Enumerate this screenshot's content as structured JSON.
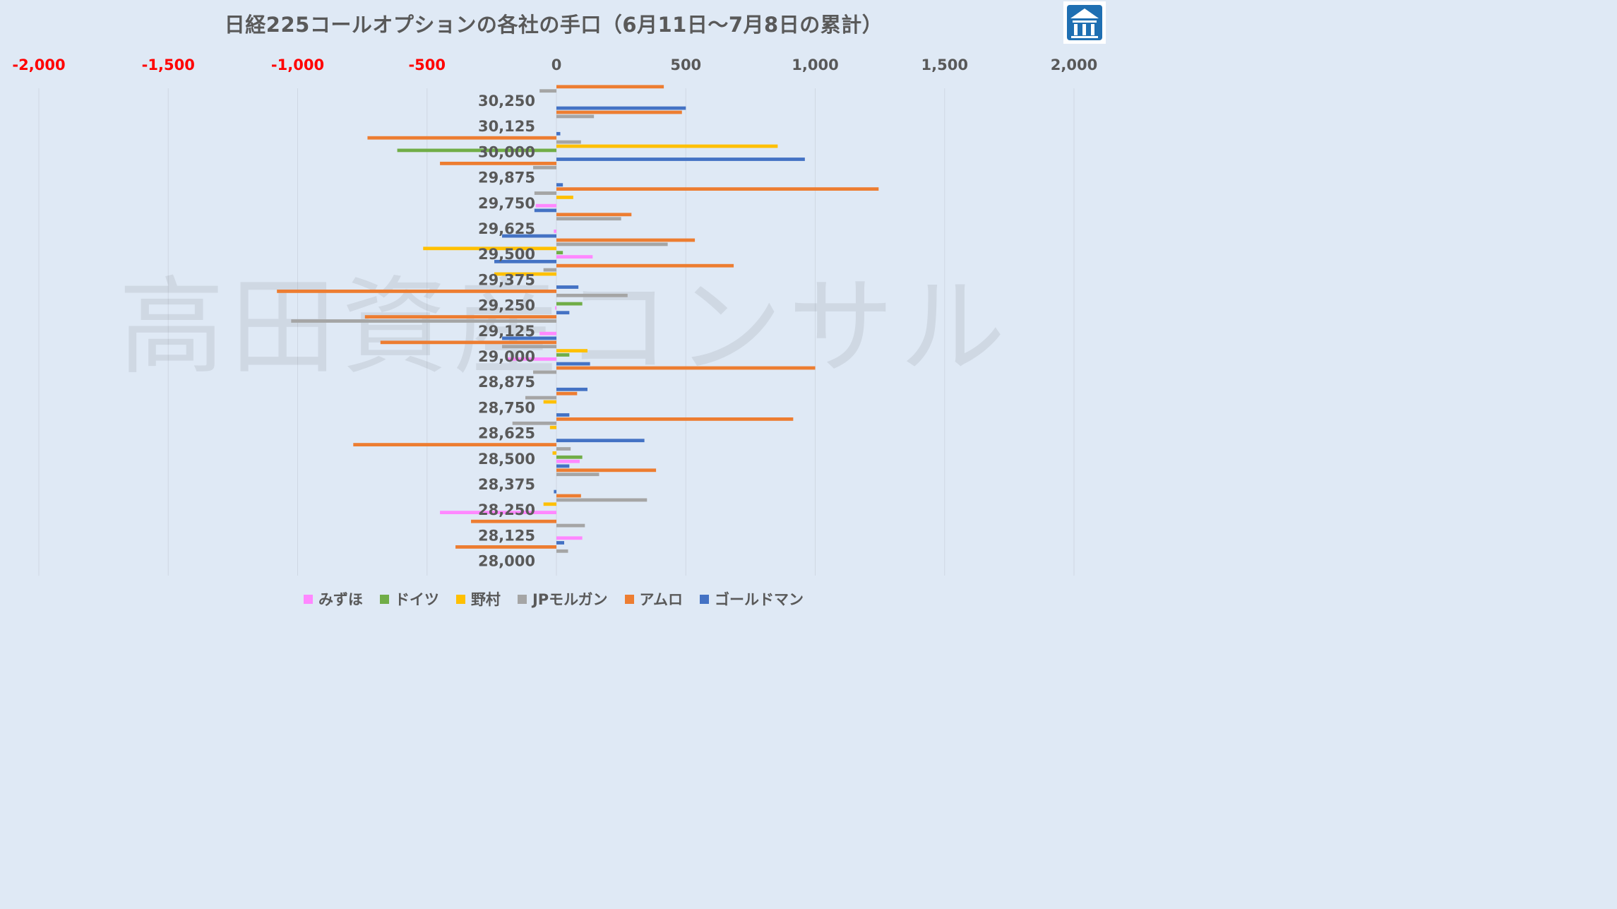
{
  "watermark": "高田資産コンサル",
  "chart_data": {
    "type": "bar",
    "orientation": "horizontal",
    "title": "日経225コールオプションの各社の手口（6月11日〜7月8日の累計）",
    "xlim": [
      -2000,
      2000
    ],
    "x_ticks": [
      {
        "value": -2000,
        "label": "-2,000"
      },
      {
        "value": -1500,
        "label": "-1,500"
      },
      {
        "value": -1000,
        "label": "-1,000"
      },
      {
        "value": -500,
        "label": "-500"
      },
      {
        "value": 0,
        "label": "0"
      },
      {
        "value": 500,
        "label": "500"
      },
      {
        "value": 1000,
        "label": "1,000"
      },
      {
        "value": 1500,
        "label": "1,500"
      },
      {
        "value": 2000,
        "label": "2,000"
      }
    ],
    "negative_tick_color": "#ff0000",
    "grid": true,
    "legend_position": "bottom",
    "categories": [
      "30,250",
      "30,125",
      "30,000",
      "29,875",
      "29,750",
      "29,625",
      "29,500",
      "29,375",
      "29,250",
      "29,125",
      "29,000",
      "28,875",
      "28,750",
      "28,625",
      "28,500",
      "28,375",
      "28,250",
      "28,125",
      "28,000"
    ],
    "series": [
      {
        "name": "みずほ",
        "color": "#ff88ff",
        "values": [
          0,
          0,
          0,
          0,
          -80,
          -10,
          140,
          0,
          -5,
          -65,
          -190,
          0,
          0,
          0,
          90,
          0,
          -450,
          100,
          0
        ]
      },
      {
        "name": "ドイツ",
        "color": "#70ad47",
        "values": [
          0,
          0,
          -615,
          0,
          0,
          0,
          25,
          0,
          100,
          0,
          50,
          0,
          0,
          0,
          100,
          0,
          0,
          0,
          0
        ]
      },
      {
        "name": "野村",
        "color": "#ffc000",
        "values": [
          0,
          0,
          855,
          0,
          65,
          0,
          -515,
          -240,
          0,
          0,
          120,
          0,
          -50,
          -25,
          -15,
          0,
          -50,
          0,
          0
        ]
      },
      {
        "name": "JPモルガン",
        "color": "#a5a5a5",
        "values": [
          -65,
          145,
          95,
          -90,
          -85,
          250,
          430,
          -50,
          275,
          -1025,
          -210,
          -90,
          -120,
          -170,
          55,
          165,
          350,
          110,
          45
        ]
      },
      {
        "name": "アムロ",
        "color": "#ed7d31",
        "values": [
          415,
          485,
          -730,
          -450,
          1245,
          290,
          535,
          685,
          -1080,
          -740,
          -680,
          1000,
          80,
          915,
          -785,
          385,
          95,
          -330,
          -390
        ]
      },
      {
        "name": "ゴールドマン",
        "color": "#4472c4",
        "values": [
          0,
          500,
          15,
          960,
          25,
          -85,
          -210,
          -240,
          85,
          50,
          -210,
          130,
          120,
          50,
          340,
          50,
          -10,
          0,
          30
        ]
      }
    ]
  }
}
